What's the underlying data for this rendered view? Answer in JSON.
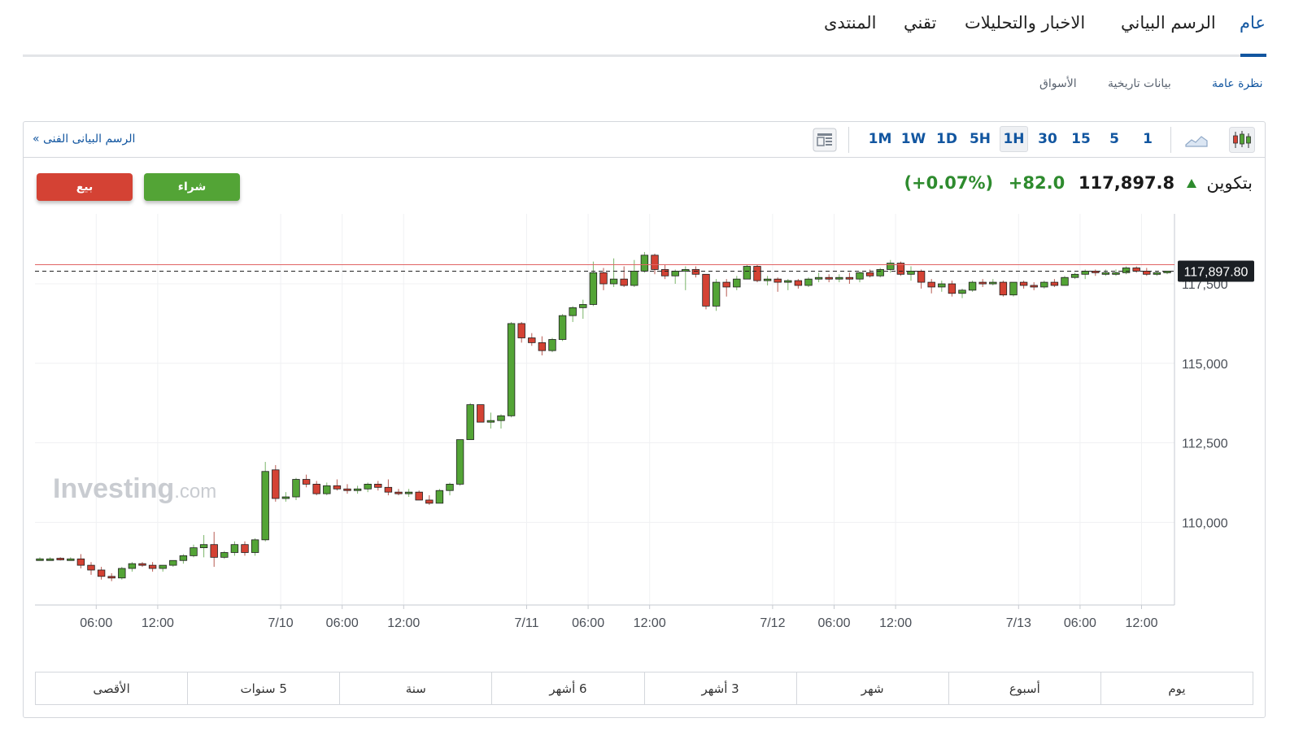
{
  "tabs": [
    {
      "label": "عام",
      "active": true
    },
    {
      "label": "الرسم البياني",
      "active": false
    },
    {
      "label": "الاخبار والتحليلات",
      "active": false
    },
    {
      "label": "تقني",
      "active": false
    },
    {
      "label": "المنتدى",
      "active": false
    }
  ],
  "subtabs": [
    {
      "label": "نظرة عامة",
      "active": true
    },
    {
      "label": "بيانات تاريخية",
      "active": false
    },
    {
      "label": "الأسواق",
      "active": false
    }
  ],
  "toolbar": {
    "tech_chart_link": "الرسم البيانى الفنى »",
    "timeframes": [
      "1M",
      "1W",
      "1D",
      "5H",
      "1H",
      "30",
      "15",
      "5",
      "1"
    ],
    "active_timeframe": "1H"
  },
  "buttons": {
    "sell": "بيع",
    "buy": "شراء"
  },
  "quote": {
    "symbol": "بتكوين",
    "price": "117,897.8",
    "change": "+82.0",
    "change_pct": "(+0.07%)",
    "direction": "up"
  },
  "watermark": {
    "brand": "Investing",
    "suffix": ".com"
  },
  "colors": {
    "up": "#53a436",
    "down": "#d44234",
    "link": "#1256a0",
    "price_line": "#e06464"
  },
  "periods": [
    "يوم",
    "أسبوع",
    "شهر",
    "3 أشهر",
    "6 أشهر",
    "سنة",
    "5 سنوات",
    "الأقصى"
  ],
  "chart_data": {
    "type": "candlestick",
    "interval": "1H",
    "current_price_label": "117,897.80",
    "current_price": 117897.8,
    "y_ticks": [
      110000,
      112500,
      115000,
      117500
    ],
    "y_tick_labels": [
      "110,000",
      "112,500",
      "115,000",
      "117,500"
    ],
    "ylim": [
      107400,
      119700
    ],
    "x_tick_labels": [
      "06:00",
      "12:00",
      "7/10",
      "06:00",
      "12:00",
      "7/11",
      "06:00",
      "12:00",
      "7/12",
      "06:00",
      "12:00",
      "7/13",
      "06:00",
      "12:00"
    ],
    "x_tick_index": [
      5,
      11,
      23,
      29,
      35,
      47,
      53,
      59,
      71,
      77,
      83,
      95,
      101,
      107
    ],
    "grid": true,
    "ohlc": [
      [
        108850,
        108900,
        108800,
        108850
      ],
      [
        108850,
        108900,
        108800,
        108850
      ],
      [
        108870,
        108900,
        108800,
        108840
      ],
      [
        108840,
        108900,
        108800,
        108850
      ],
      [
        108850,
        109000,
        108550,
        108650
      ],
      [
        108650,
        108750,
        108350,
        108500
      ],
      [
        108500,
        108600,
        108200,
        108300
      ],
      [
        108300,
        108400,
        108150,
        108250
      ],
      [
        108250,
        108600,
        108200,
        108550
      ],
      [
        108550,
        108750,
        108450,
        108700
      ],
      [
        108700,
        108750,
        108600,
        108650
      ],
      [
        108650,
        108750,
        108450,
        108550
      ],
      [
        108550,
        108650,
        108450,
        108650
      ],
      [
        108650,
        108800,
        108600,
        108800
      ],
      [
        108800,
        109000,
        108700,
        108950
      ],
      [
        108950,
        109300,
        108900,
        109200
      ],
      [
        109200,
        109600,
        108900,
        109300
      ],
      [
        109300,
        109700,
        108600,
        108900
      ],
      [
        108900,
        109100,
        108850,
        109050
      ],
      [
        109050,
        109400,
        108950,
        109300
      ],
      [
        109300,
        109400,
        108950,
        109050
      ],
      [
        109050,
        109500,
        108950,
        109450
      ],
      [
        109450,
        111900,
        109400,
        111600
      ],
      [
        111650,
        111800,
        110650,
        110750
      ],
      [
        110750,
        110950,
        110650,
        110800
      ],
      [
        110800,
        111400,
        110700,
        111350
      ],
      [
        111350,
        111500,
        111100,
        111200
      ],
      [
        111200,
        111300,
        110850,
        110900
      ],
      [
        110900,
        111250,
        110850,
        111150
      ],
      [
        111150,
        111350,
        111000,
        111050
      ],
      [
        111050,
        111200,
        110900,
        111000
      ],
      [
        111000,
        111150,
        110900,
        111050
      ],
      [
        111050,
        111250,
        110950,
        111200
      ],
      [
        111200,
        111300,
        111000,
        111100
      ],
      [
        111100,
        111350,
        110850,
        110950
      ],
      [
        110950,
        111050,
        110850,
        110900
      ],
      [
        110900,
        111050,
        110800,
        110950
      ],
      [
        110950,
        111000,
        110700,
        110700
      ],
      [
        110700,
        110850,
        110550,
        110600
      ],
      [
        110600,
        111050,
        110600,
        111000
      ],
      [
        111000,
        111250,
        110850,
        111200
      ],
      [
        111200,
        112600,
        111150,
        112600
      ],
      [
        112600,
        113750,
        112600,
        113700
      ],
      [
        113700,
        113700,
        113150,
        113150
      ],
      [
        113150,
        113450,
        112950,
        113200
      ],
      [
        113200,
        113400,
        112950,
        113350
      ],
      [
        113350,
        116300,
        113300,
        116250
      ],
      [
        116250,
        116300,
        115650,
        115800
      ],
      [
        115800,
        115950,
        115550,
        115650
      ],
      [
        115650,
        115850,
        115250,
        115400
      ],
      [
        115400,
        115800,
        115350,
        115750
      ],
      [
        115750,
        116550,
        115700,
        116500
      ],
      [
        116500,
        116800,
        116300,
        116750
      ],
      [
        116750,
        117000,
        116400,
        116850
      ],
      [
        116850,
        118200,
        116800,
        117850
      ],
      [
        117850,
        118000,
        117300,
        117500
      ],
      [
        117500,
        118300,
        117400,
        117650
      ],
      [
        117650,
        118050,
        117400,
        117450
      ],
      [
        117450,
        118250,
        117400,
        117900
      ],
      [
        117900,
        118500,
        117850,
        118400
      ],
      [
        118400,
        118450,
        117800,
        117950
      ],
      [
        117950,
        118100,
        117650,
        117750
      ],
      [
        117750,
        117950,
        117500,
        117900
      ],
      [
        117900,
        118050,
        117300,
        117950
      ],
      [
        117950,
        118050,
        117700,
        117800
      ],
      [
        117800,
        117800,
        116700,
        116800
      ],
      [
        116800,
        117650,
        116650,
        117550
      ],
      [
        117550,
        117650,
        117100,
        117400
      ],
      [
        117400,
        117750,
        117300,
        117650
      ],
      [
        117650,
        118100,
        117650,
        118050
      ],
      [
        118050,
        118100,
        117550,
        117600
      ],
      [
        117600,
        117750,
        117450,
        117650
      ],
      [
        117650,
        117700,
        117250,
        117550
      ],
      [
        117550,
        117650,
        117300,
        117600
      ],
      [
        117600,
        117650,
        117350,
        117450
      ],
      [
        117450,
        117700,
        117400,
        117650
      ],
      [
        117650,
        117850,
        117550,
        117700
      ],
      [
        117700,
        117800,
        117550,
        117650
      ],
      [
        117650,
        117800,
        117550,
        117700
      ],
      [
        117700,
        117850,
        117500,
        117650
      ],
      [
        117650,
        117900,
        117550,
        117850
      ],
      [
        117850,
        117950,
        117700,
        117750
      ],
      [
        117750,
        118000,
        117700,
        117950
      ],
      [
        117950,
        118250,
        117850,
        118150
      ],
      [
        118150,
        118200,
        117750,
        117800
      ],
      [
        117800,
        118050,
        117600,
        117900
      ],
      [
        117900,
        117950,
        117350,
        117550
      ],
      [
        117550,
        117650,
        117200,
        117400
      ],
      [
        117400,
        117600,
        117250,
        117500
      ],
      [
        117500,
        117600,
        117100,
        117200
      ],
      [
        117200,
        117350,
        117050,
        117300
      ],
      [
        117300,
        117600,
        117250,
        117550
      ],
      [
        117550,
        117650,
        117400,
        117500
      ],
      [
        117500,
        117650,
        117450,
        117550
      ],
      [
        117550,
        117600,
        117100,
        117150
      ],
      [
        117150,
        117550,
        117100,
        117550
      ],
      [
        117550,
        117600,
        117350,
        117450
      ],
      [
        117450,
        117550,
        117300,
        117400
      ],
      [
        117400,
        117600,
        117350,
        117550
      ],
      [
        117550,
        117650,
        117400,
        117450
      ],
      [
        117450,
        117750,
        117450,
        117700
      ],
      [
        117700,
        117850,
        117650,
        117800
      ],
      [
        117800,
        117950,
        117650,
        117900
      ],
      [
        117900,
        117950,
        117750,
        117850
      ],
      [
        117850,
        117950,
        117750,
        117850
      ],
      [
        117850,
        117950,
        117750,
        117850
      ],
      [
        117850,
        118050,
        117800,
        118000
      ],
      [
        118000,
        118050,
        117850,
        117900
      ],
      [
        117900,
        118000,
        117750,
        117800
      ],
      [
        117800,
        117900,
        117750,
        117850
      ],
      [
        117850,
        117900,
        117800,
        117900
      ]
    ]
  }
}
